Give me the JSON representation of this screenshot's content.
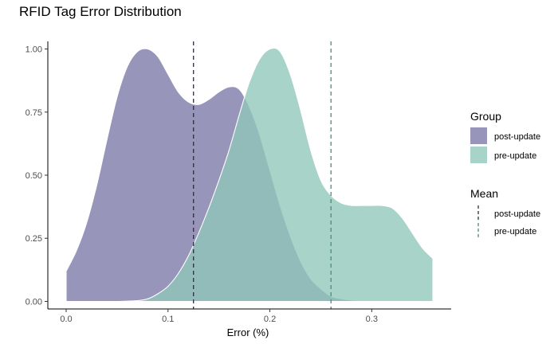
{
  "chart_data": {
    "type": "area",
    "title": "RFID Tag Error Distribution",
    "xlabel": "Error (%)",
    "ylabel": "",
    "xlim": [
      -0.018,
      0.378
    ],
    "ylim": [
      -0.03,
      1.03
    ],
    "x_ticks": [
      0.0,
      0.1,
      0.2,
      0.3
    ],
    "x_tick_labels": [
      "0.0",
      "0.1",
      "0.2",
      "0.3"
    ],
    "y_ticks": [
      0.0,
      0.25,
      0.5,
      0.75,
      1.0
    ],
    "y_tick_labels": [
      "0.00",
      "0.25",
      "0.50",
      "0.75",
      "1.00"
    ],
    "grid": false,
    "legend_placement": "right",
    "series": [
      {
        "name": "post-update",
        "color": "#7a77a6",
        "x": [
          0.0,
          0.01,
          0.02,
          0.03,
          0.04,
          0.05,
          0.06,
          0.07,
          0.08,
          0.09,
          0.1,
          0.11,
          0.12,
          0.13,
          0.14,
          0.15,
          0.16,
          0.17,
          0.18,
          0.19,
          0.2,
          0.21,
          0.22,
          0.23,
          0.24,
          0.25,
          0.26,
          0.27,
          0.28,
          0.29,
          0.3,
          0.31,
          0.32,
          0.33,
          0.34,
          0.35,
          0.36
        ],
        "values": [
          0.12,
          0.2,
          0.31,
          0.46,
          0.64,
          0.81,
          0.93,
          0.99,
          1.0,
          0.97,
          0.9,
          0.83,
          0.79,
          0.78,
          0.8,
          0.83,
          0.85,
          0.84,
          0.77,
          0.66,
          0.52,
          0.38,
          0.26,
          0.16,
          0.09,
          0.05,
          0.02,
          0.01,
          0.005,
          0.002,
          0.001,
          0.0,
          0.0,
          0.0,
          0.0,
          0.0,
          0.0
        ]
      },
      {
        "name": "pre-update",
        "color": "#8fc6b8",
        "x": [
          0.0,
          0.01,
          0.02,
          0.03,
          0.04,
          0.05,
          0.06,
          0.07,
          0.08,
          0.09,
          0.1,
          0.11,
          0.12,
          0.13,
          0.14,
          0.15,
          0.16,
          0.17,
          0.18,
          0.19,
          0.2,
          0.21,
          0.22,
          0.23,
          0.24,
          0.25,
          0.26,
          0.27,
          0.28,
          0.29,
          0.3,
          0.31,
          0.32,
          0.33,
          0.34,
          0.35,
          0.36
        ],
        "values": [
          0.0,
          0.0,
          0.0,
          0.0,
          0.0,
          0.0,
          0.001,
          0.003,
          0.01,
          0.03,
          0.06,
          0.11,
          0.18,
          0.27,
          0.37,
          0.48,
          0.6,
          0.74,
          0.87,
          0.96,
          1.0,
          0.99,
          0.9,
          0.76,
          0.6,
          0.48,
          0.42,
          0.39,
          0.38,
          0.38,
          0.38,
          0.38,
          0.37,
          0.33,
          0.27,
          0.21,
          0.17
        ]
      }
    ],
    "means": [
      {
        "name": "post-update",
        "value": 0.125,
        "color": "#2c2c3e"
      },
      {
        "name": "pre-update",
        "value": 0.26,
        "color": "#4b8a80"
      }
    ],
    "legend": {
      "group_title": "Group",
      "mean_title": "Mean"
    }
  }
}
